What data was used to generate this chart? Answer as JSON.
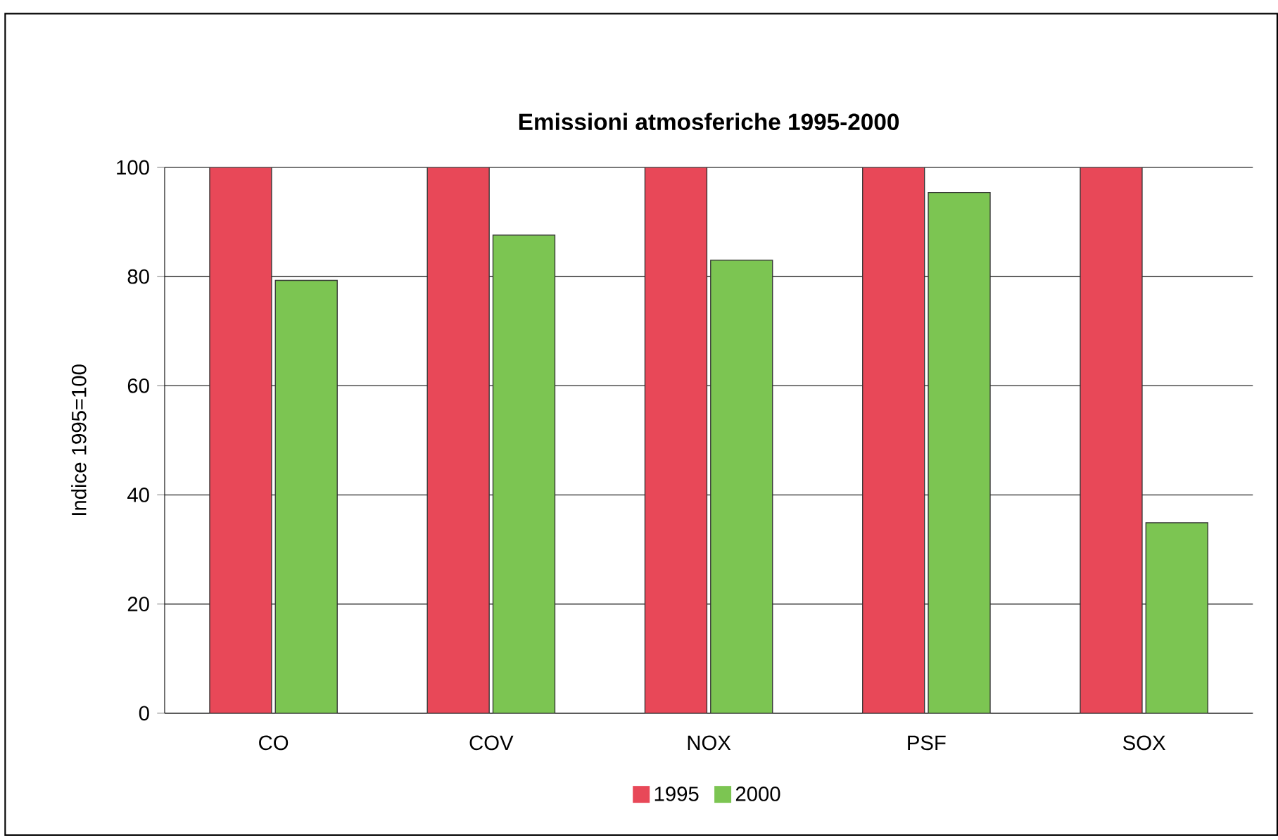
{
  "chart_data": {
    "type": "bar",
    "title": "Emissioni atmosferiche 1995-2000",
    "ylabel": "Indice 1995=100",
    "categories": [
      "CO",
      "COV",
      "NOX",
      "PSF",
      "SOX"
    ],
    "series": [
      {
        "name": "1995",
        "color": "#e84858",
        "values": [
          100,
          100,
          100,
          100,
          100
        ]
      },
      {
        "name": "2000",
        "color": "#7cc552",
        "values": [
          79.3,
          87.6,
          83.0,
          95.4,
          34.9
        ]
      }
    ],
    "ylim": [
      0,
      100
    ],
    "yticks": [
      0,
      20,
      40,
      60,
      80,
      100
    ],
    "grid": "y",
    "legend": "bottom"
  }
}
